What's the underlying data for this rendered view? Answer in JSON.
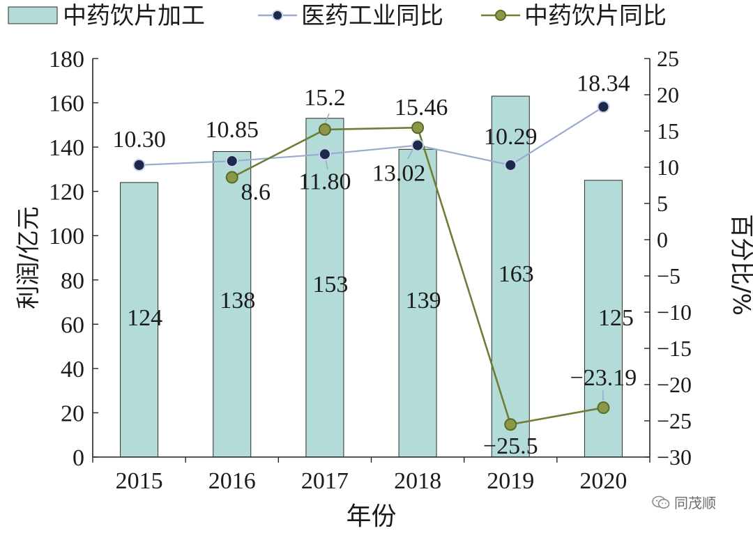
{
  "chart_data": {
    "type": "bar",
    "categories": [
      "2015",
      "2016",
      "2017",
      "2018",
      "2019",
      "2020"
    ],
    "xlabel": "年份",
    "ylabel_left": "利润/亿元",
    "ylabel_right": "百分比/%",
    "ylim_left": [
      0,
      180
    ],
    "ylim_right": [
      -30,
      25
    ],
    "yticks_left": [
      "0",
      "20",
      "40",
      "60",
      "80",
      "100",
      "120",
      "140",
      "160",
      "180"
    ],
    "yticks_right": [
      "−30",
      "−25",
      "−20",
      "−15",
      "−10",
      "−5",
      "0",
      "5",
      "10",
      "15",
      "20",
      "25"
    ],
    "legend_position": "top",
    "grid": false,
    "bar_series": {
      "name": "中药饮片加工",
      "values": [
        124,
        138,
        153,
        139,
        163,
        125
      ],
      "labels": [
        "124",
        "138",
        "153",
        "139",
        "163",
        "125"
      ],
      "color": "#b3dcd8"
    },
    "line_series": [
      {
        "name": "医药工业同比",
        "values": [
          10.3,
          10.85,
          11.8,
          13.02,
          10.29,
          18.34
        ],
        "labels": [
          "10.30",
          "10.85",
          "11.80",
          "13.02",
          "10.29",
          "18.34"
        ],
        "line_color": "#9aaad0",
        "marker_color": "#1b2a48"
      },
      {
        "name": "中药饮片同比",
        "values": [
          null,
          8.6,
          15.2,
          15.46,
          -25.5,
          -23.19
        ],
        "labels": [
          "",
          "8.6",
          "15.2",
          "15.46",
          "−25.5",
          "−23.19"
        ],
        "line_color": "#6e7d36",
        "marker_color": "#8a9848"
      }
    ]
  },
  "watermark": "同茂顺"
}
